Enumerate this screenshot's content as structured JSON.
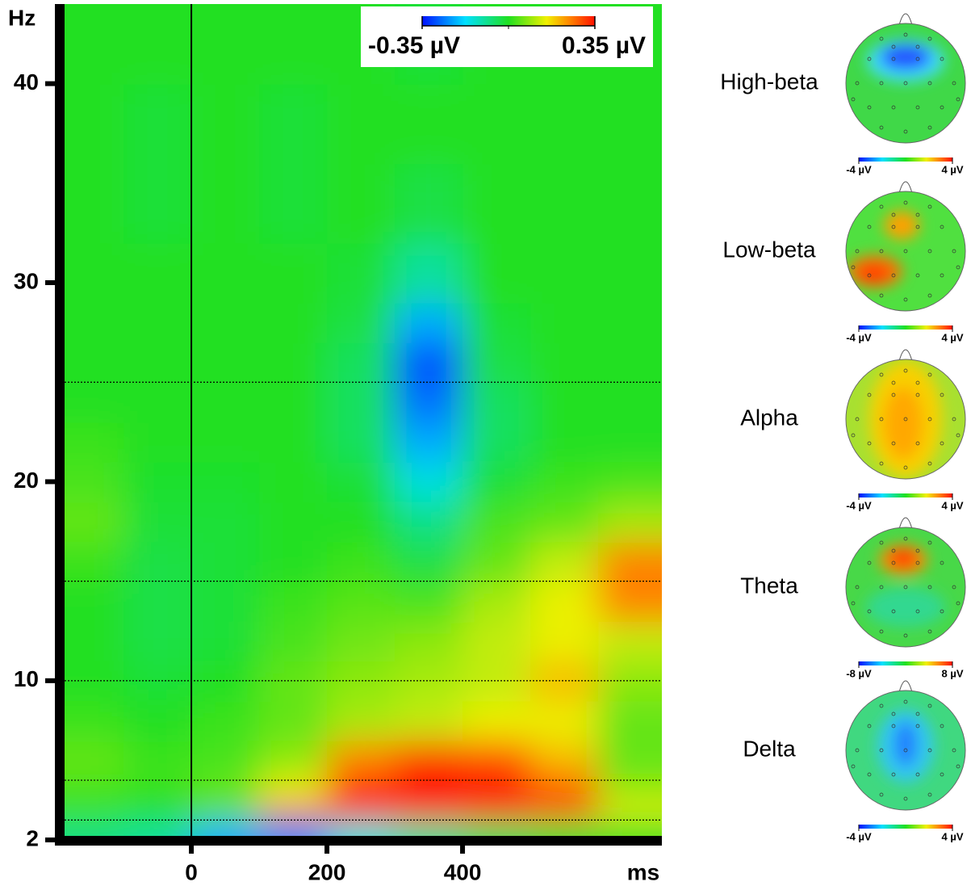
{
  "chart_data": {
    "type": "heatmap",
    "x_label": "ms",
    "y_label": "Hz",
    "xlim": [
      -187,
      694
    ],
    "ylim": [
      2,
      44
    ],
    "xticks": [
      0,
      200,
      400
    ],
    "yticks": [
      2,
      10,
      20,
      30,
      40
    ],
    "vlines": [
      0
    ],
    "hlines": [
      3,
      5,
      10,
      15,
      25
    ],
    "zlim": [
      {
        "value": -0.35,
        "label": "-0.35 µV"
      },
      {
        "value": 0.35,
        "label": "0.35 µV"
      }
    ],
    "x": [
      -150,
      -50,
      50,
      150,
      250,
      350,
      450,
      550,
      650
    ],
    "y": [
      2.5,
      3.5,
      4.5,
      6,
      8,
      10,
      12,
      14,
      16,
      18,
      20,
      22,
      24,
      26,
      28,
      30,
      34,
      38,
      42
    ],
    "z": [
      [
        -0.08,
        -0.1,
        -0.22,
        -0.25,
        -0.15,
        -0.1,
        -0.05,
        -0.02,
        0
      ],
      [
        0.02,
        0,
        0.05,
        0.25,
        0.33,
        0.35,
        0.33,
        0.28,
        0.15
      ],
      [
        0.03,
        0.02,
        0.05,
        0.15,
        0.33,
        0.35,
        0.35,
        0.3,
        0.08
      ],
      [
        0.05,
        0.02,
        0.03,
        0.08,
        0.25,
        0.32,
        0.3,
        0.2,
        0.05
      ],
      [
        0.02,
        0,
        0.02,
        0.05,
        0.1,
        0.12,
        0.15,
        0.15,
        0.05
      ],
      [
        0,
        -0.02,
        0,
        0.05,
        0.08,
        0.1,
        0.12,
        0.2,
        0.08
      ],
      [
        0,
        -0.03,
        -0.02,
        0.03,
        0.06,
        0.08,
        0.12,
        0.15,
        0.12
      ],
      [
        0,
        -0.03,
        -0.02,
        0.02,
        0.04,
        0.03,
        0.1,
        0.15,
        0.25
      ],
      [
        0.02,
        -0.03,
        -0.02,
        0,
        0.02,
        -0.03,
        0.05,
        0.12,
        0.25
      ],
      [
        0.05,
        -0.02,
        -0.02,
        0,
        0,
        -0.08,
        0.03,
        0.05,
        0.1
      ],
      [
        0.03,
        -0.01,
        -0.01,
        0,
        -0.02,
        -0.15,
        -0.02,
        0.02,
        0.03
      ],
      [
        0.02,
        0,
        0,
        0,
        -0.05,
        -0.22,
        -0.05,
        0,
        0
      ],
      [
        0,
        0,
        0,
        0,
        -0.05,
        -0.27,
        -0.05,
        0,
        0
      ],
      [
        0,
        0,
        0,
        0,
        -0.05,
        -0.3,
        -0.03,
        0,
        0
      ],
      [
        0,
        0,
        0,
        0,
        -0.03,
        -0.22,
        -0.02,
        0,
        0
      ],
      [
        0,
        0,
        0,
        0,
        -0.02,
        -0.1,
        0,
        0,
        0
      ],
      [
        0,
        -0.02,
        0,
        -0.02,
        0,
        -0.03,
        0,
        0,
        0
      ],
      [
        0,
        -0.02,
        0,
        -0.02,
        0,
        0,
        0,
        0,
        0
      ],
      [
        0,
        0,
        0,
        0,
        0,
        -0.02,
        0,
        0,
        0
      ]
    ],
    "topomaps": [
      {
        "label": "High-beta",
        "clim": [
          {
            "value": -4,
            "label": "-4 µV"
          },
          {
            "value": 4,
            "label": "4 µV"
          }
        ]
      },
      {
        "label": "Low-beta",
        "clim": [
          {
            "value": -4,
            "label": "-4 µV"
          },
          {
            "value": 4,
            "label": "4 µV"
          }
        ]
      },
      {
        "label": "Alpha",
        "clim": [
          {
            "value": -4,
            "label": "-4 µV"
          },
          {
            "value": 4,
            "label": "4 µV"
          }
        ]
      },
      {
        "label": "Theta",
        "clim": [
          {
            "value": -8,
            "label": "-8 µV"
          },
          {
            "value": 8,
            "label": "8 µV"
          }
        ]
      },
      {
        "label": "Delta",
        "clim": [
          {
            "value": -4,
            "label": "-4 µV"
          },
          {
            "value": 4,
            "label": "4 µV"
          }
        ]
      }
    ]
  }
}
